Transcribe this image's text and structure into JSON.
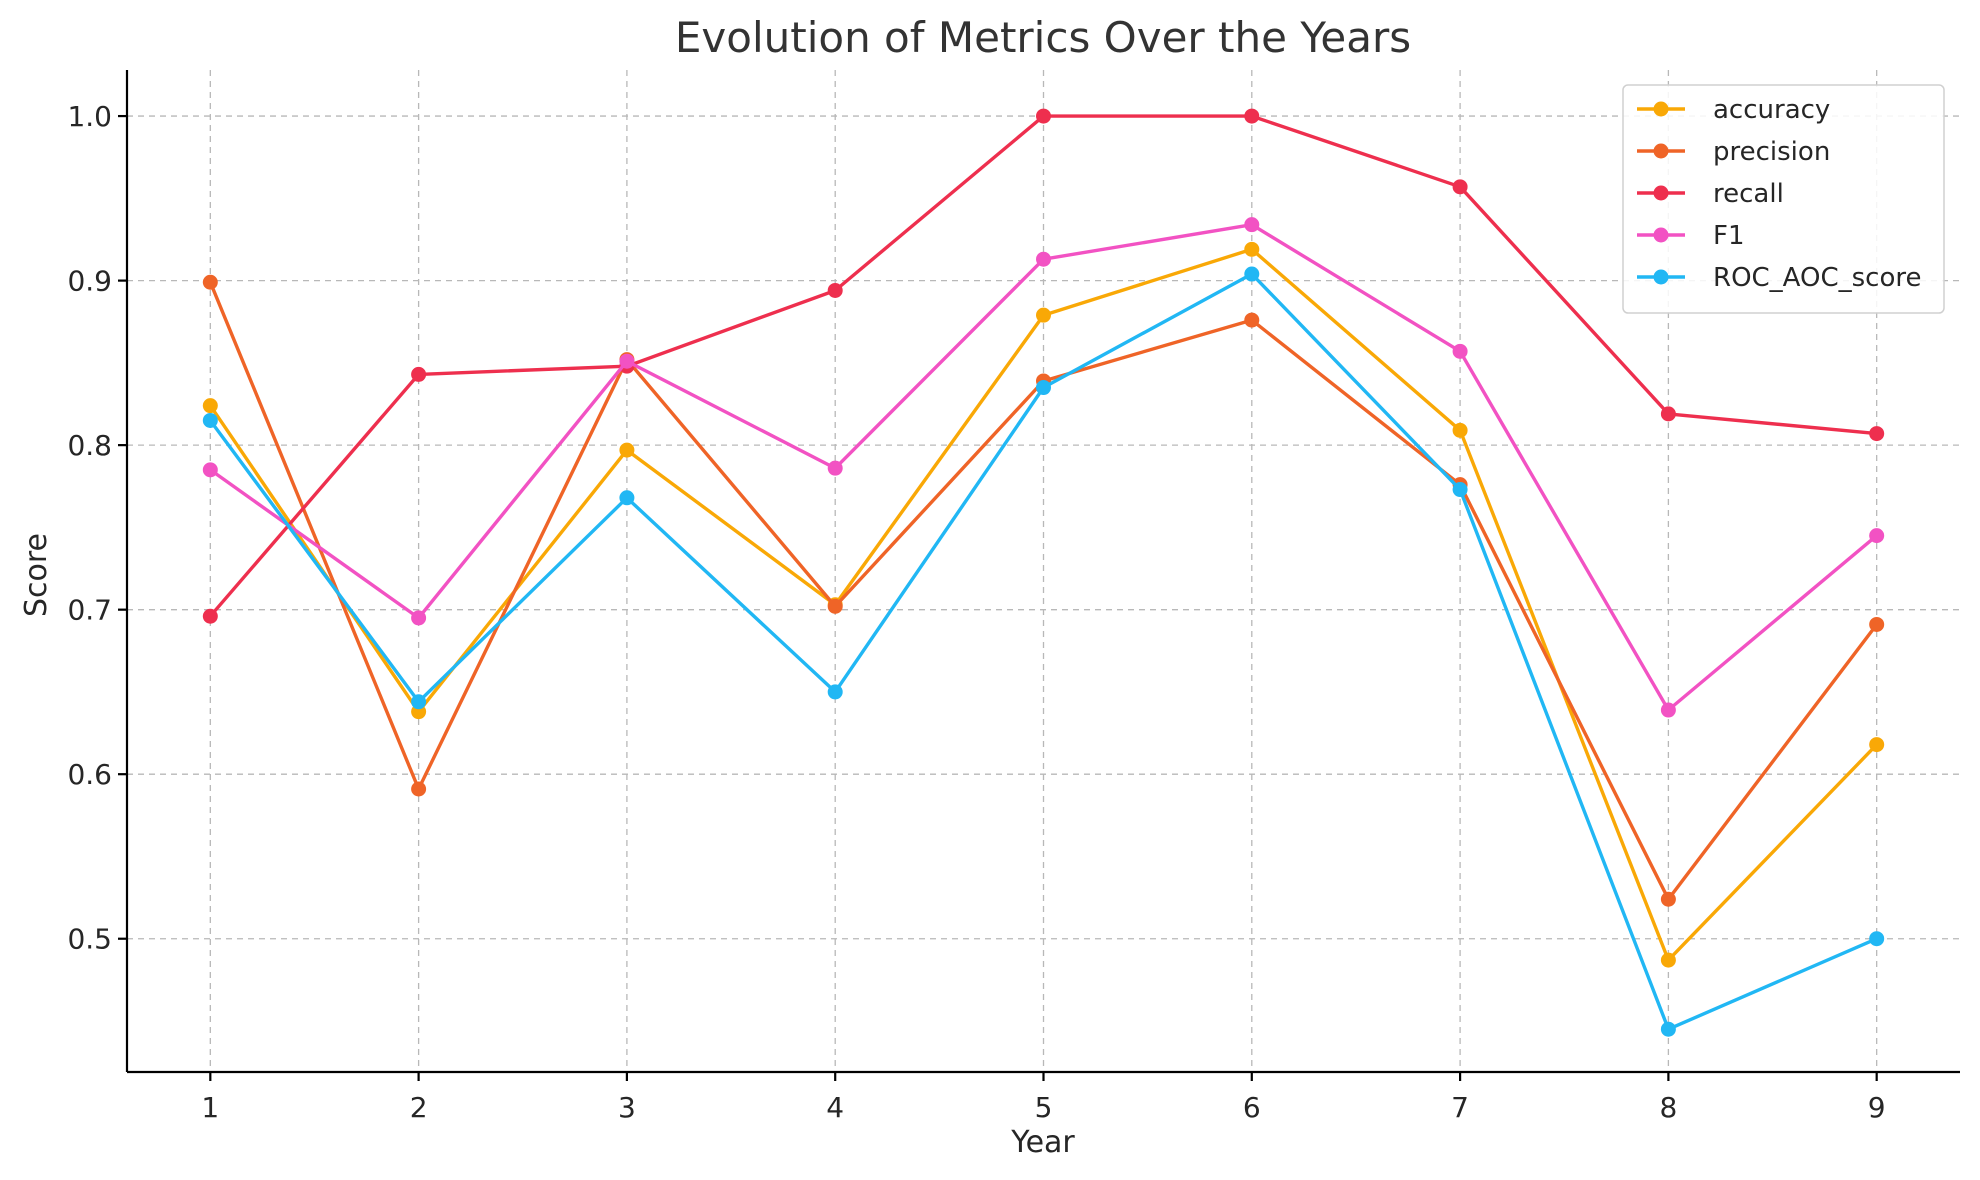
{
  "chart_data": {
    "type": "line",
    "title": "Evolution of Metrics Over the Years",
    "xlabel": "Year",
    "ylabel": "Score",
    "x": [
      1,
      2,
      3,
      4,
      5,
      6,
      7,
      8,
      9
    ],
    "x_tick_labels": [
      "1",
      "2",
      "3",
      "4",
      "5",
      "6",
      "7",
      "8",
      "9"
    ],
    "y_ticks": [
      0.5,
      0.6,
      0.7,
      0.8,
      0.9,
      1.0
    ],
    "y_tick_labels": [
      "0.5",
      "0.6",
      "0.7",
      "0.8",
      "0.9",
      "1.0"
    ],
    "xlim": [
      0.6,
      9.4
    ],
    "ylim": [
      0.419,
      1.028
    ],
    "grid": true,
    "legend_position": "top-right",
    "series": [
      {
        "name": "accuracy",
        "color": "#F9A806",
        "values": [
          0.824,
          0.638,
          0.797,
          0.703,
          0.879,
          0.919,
          0.809,
          0.487,
          0.618
        ]
      },
      {
        "name": "precision",
        "color": "#EF6427",
        "values": [
          0.899,
          0.591,
          0.852,
          0.702,
          0.839,
          0.876,
          0.776,
          0.524,
          0.691
        ]
      },
      {
        "name": "recall",
        "color": "#EE2F4E",
        "values": [
          0.696,
          0.843,
          0.848,
          0.894,
          1.0,
          1.0,
          0.957,
          0.819,
          0.807
        ]
      },
      {
        "name": "F1",
        "color": "#F252C3",
        "values": [
          0.785,
          0.695,
          0.851,
          0.786,
          0.913,
          0.934,
          0.857,
          0.639,
          0.745
        ]
      },
      {
        "name": "ROC_AOC_score",
        "color": "#21B7F4",
        "values": [
          0.815,
          0.644,
          0.768,
          0.65,
          0.835,
          0.904,
          0.773,
          0.445,
          0.5
        ]
      }
    ]
  }
}
